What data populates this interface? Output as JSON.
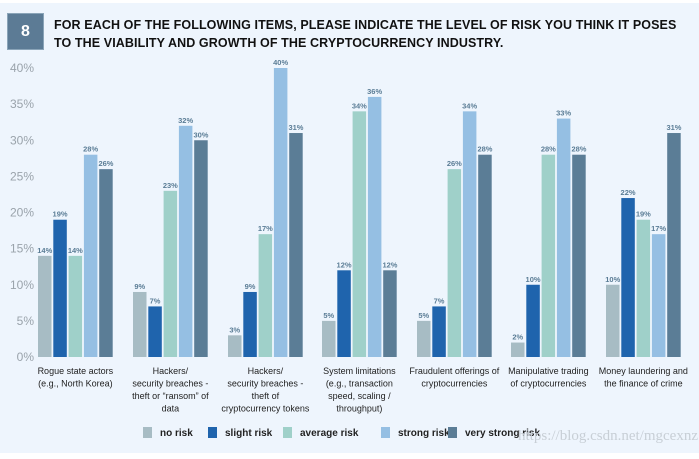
{
  "header": {
    "number": "8",
    "title": "FOR EACH OF THE FOLLOWING ITEMS, PLEASE INDICATE THE LEVEL OF RISK YOU THINK IT POSES TO THE VIABILITY AND GROWTH OF THE CRYPTOCURRENCY INDUSTRY."
  },
  "watermark": "https://blog.csdn.net/mgcexnz",
  "chart_data": {
    "type": "bar",
    "title": "",
    "xlabel": "",
    "ylabel": "",
    "ylim": [
      0,
      40
    ],
    "yticks": [
      "0%",
      "5%",
      "10%",
      "15%",
      "20%",
      "25%",
      "30%",
      "35%",
      "40%"
    ],
    "grid": false,
    "legend_position": "bottom",
    "categories": [
      [
        "Rogue state actors",
        "(e.g., North Korea)"
      ],
      [
        "Hackers/",
        "security breaches -",
        "theft or “ransom” of",
        "data"
      ],
      [
        "Hackers/",
        "security breaches -",
        "theft of",
        "cryptocurrency tokens"
      ],
      [
        "System limitations",
        "(e.g., transaction",
        "speed, scaling /",
        "throughput)"
      ],
      [
        "Fraudulent offerings of",
        "cryptocurrencies"
      ],
      [
        "Manipulative trading",
        "of cryptocurrencies"
      ],
      [
        "Money laundering and",
        "the finance of crime"
      ]
    ],
    "series": [
      {
        "name": "no risk",
        "color": "#a7bcc4",
        "values": [
          14,
          9,
          3,
          5,
          5,
          2,
          10
        ]
      },
      {
        "name": "slight risk",
        "color": "#1f64ad",
        "values": [
          19,
          7,
          9,
          12,
          7,
          10,
          22
        ]
      },
      {
        "name": "average risk",
        "color": "#9fd0c9",
        "values": [
          14,
          23,
          17,
          34,
          26,
          28,
          19
        ]
      },
      {
        "name": "strong risk",
        "color": "#95bfe3",
        "values": [
          28,
          32,
          40,
          36,
          34,
          33,
          17
        ]
      },
      {
        "name": "very strong risk",
        "color": "#5b7d96",
        "values": [
          26,
          30,
          31,
          12,
          28,
          28,
          31
        ]
      }
    ]
  }
}
